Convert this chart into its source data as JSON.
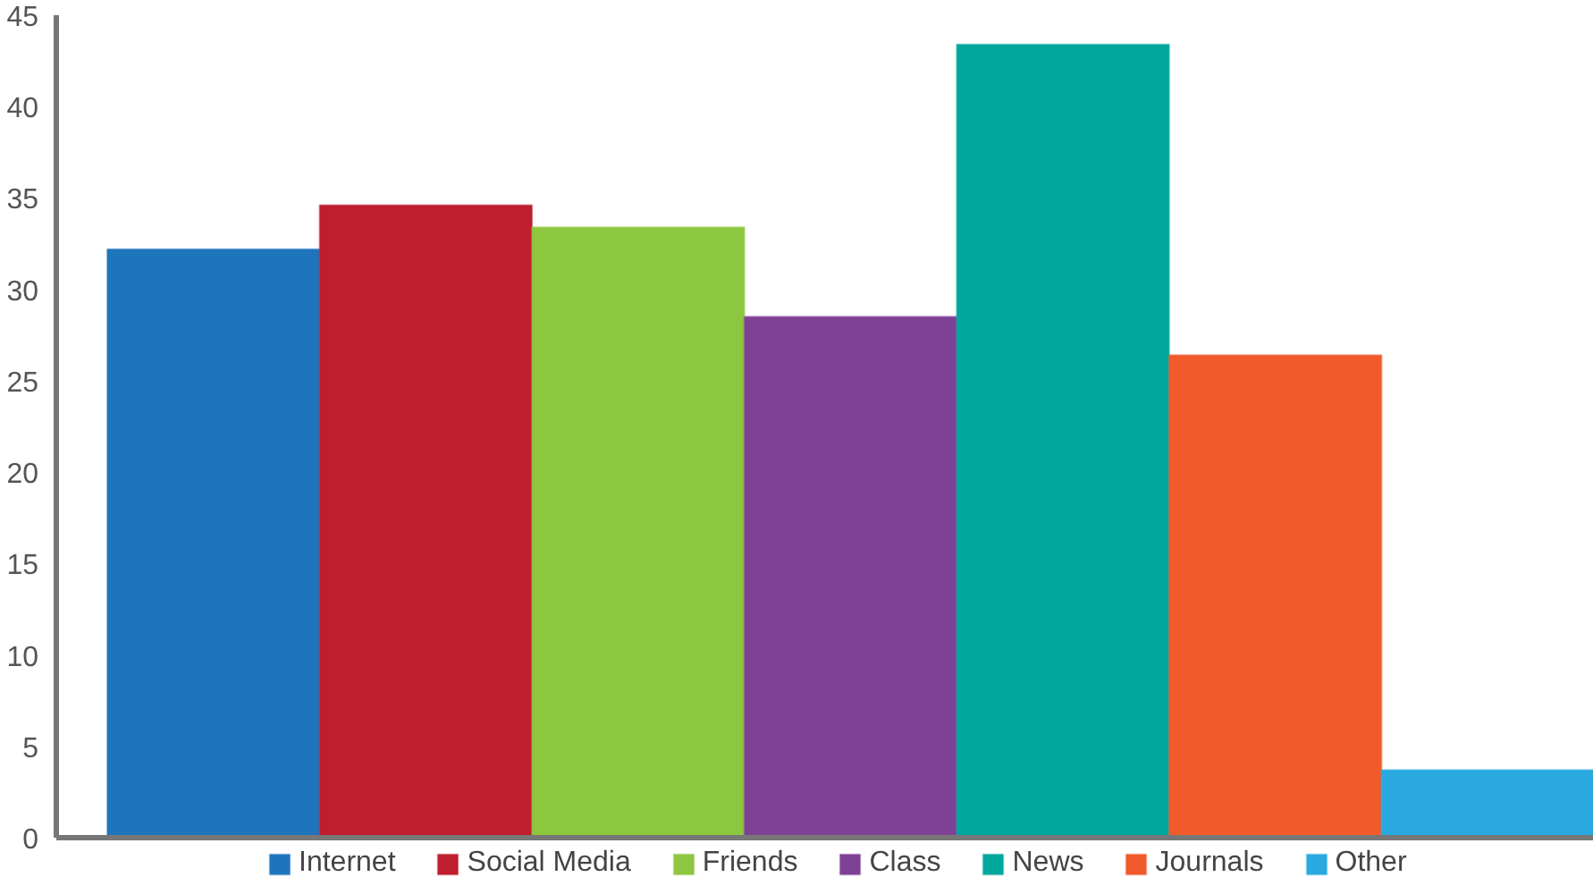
{
  "chart_data": {
    "type": "bar",
    "categories": [
      null,
      null,
      null,
      null,
      null,
      null,
      null
    ],
    "series": [
      {
        "name": "Internet",
        "color": "#1f75bc",
        "values": [
          32.2,
          null,
          null,
          null,
          null,
          null,
          null
        ]
      },
      {
        "name": "Social Media",
        "color": "#be1e2d",
        "values": [
          null,
          34.6,
          null,
          null,
          null,
          null,
          null
        ]
      },
      {
        "name": "Friends",
        "color": "#8dc63f",
        "values": [
          null,
          null,
          33.4,
          null,
          null,
          null,
          null
        ]
      },
      {
        "name": "Class",
        "color": "#7f4196",
        "values": [
          null,
          null,
          null,
          28.5,
          null,
          null,
          null
        ]
      },
      {
        "name": "News",
        "color": "#00a79d",
        "values": [
          null,
          null,
          null,
          null,
          43.4,
          null,
          null
        ]
      },
      {
        "name": "Journals",
        "color": "#f15a2b",
        "values": [
          null,
          null,
          null,
          null,
          null,
          26.4,
          null
        ]
      },
      {
        "name": "Other",
        "color": "#29a9e0",
        "values": [
          null,
          null,
          null,
          null,
          null,
          null,
          3.7
        ]
      }
    ],
    "ylim": [
      0,
      45
    ],
    "yticks": [
      0,
      5,
      10,
      15,
      20,
      25,
      30,
      35,
      40,
      45
    ],
    "grid": false,
    "legend": "bottom",
    "tick_labels": "y"
  }
}
